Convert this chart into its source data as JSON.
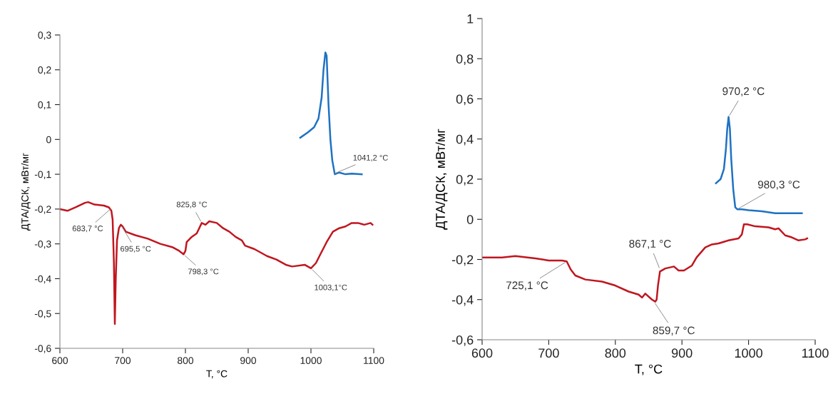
{
  "chart_data": [
    {
      "type": "line",
      "xlabel": "T, °C",
      "ylabel": "ДТА/ДСК, мВт/мг",
      "xlim": [
        600,
        1100
      ],
      "ylim": [
        -0.6,
        0.3
      ],
      "xticks": [
        600,
        700,
        800,
        900,
        1000,
        1100
      ],
      "yticks": [
        {
          "value": -0.6,
          "label": "-0,6"
        },
        {
          "value": -0.5,
          "label": "-0,5"
        },
        {
          "value": -0.4,
          "label": "-0,4"
        },
        {
          "value": -0.3,
          "label": "-0,3"
        },
        {
          "value": -0.2,
          "label": "-0,2"
        },
        {
          "value": -0.1,
          "label": "-0,1"
        },
        0,
        {
          "value": 0.1,
          "label": "0,1"
        },
        {
          "value": 0.2,
          "label": "0,2"
        },
        {
          "value": 0.3,
          "label": "0,3"
        }
      ],
      "grid": false,
      "legend": false,
      "series": [
        {
          "color": "#c0161f",
          "x": [
            600,
            612,
            625,
            640,
            645,
            655,
            670,
            678,
            682,
            684,
            686,
            687.5,
            689,
            691,
            694,
            697,
            700,
            705,
            720,
            740,
            760,
            780,
            790,
            797,
            800,
            802,
            810,
            818,
            822,
            826,
            832,
            838,
            850,
            860,
            870,
            880,
            890,
            895,
            910,
            930,
            945,
            960,
            970,
            990,
            1000,
            1008,
            1015,
            1025,
            1035,
            1045,
            1055,
            1065,
            1075,
            1085,
            1095,
            1098
          ],
          "values": [
            -0.2,
            -0.205,
            -0.195,
            -0.182,
            -0.18,
            -0.187,
            -0.19,
            -0.195,
            -0.205,
            -0.23,
            -0.35,
            -0.53,
            -0.4,
            -0.29,
            -0.255,
            -0.245,
            -0.25,
            -0.265,
            -0.275,
            -0.285,
            -0.3,
            -0.31,
            -0.32,
            -0.33,
            -0.32,
            -0.295,
            -0.28,
            -0.27,
            -0.255,
            -0.24,
            -0.245,
            -0.235,
            -0.24,
            -0.255,
            -0.265,
            -0.28,
            -0.29,
            -0.305,
            -0.315,
            -0.335,
            -0.345,
            -0.36,
            -0.365,
            -0.36,
            -0.37,
            -0.355,
            -0.33,
            -0.295,
            -0.265,
            -0.255,
            -0.25,
            -0.24,
            -0.24,
            -0.245,
            -0.24,
            -0.245
          ]
        },
        {
          "color": "#1f72c2",
          "x": [
            983,
            995,
            1005,
            1012,
            1017,
            1020,
            1023,
            1025,
            1028,
            1031,
            1034,
            1038,
            1045,
            1055,
            1065,
            1081
          ],
          "values": [
            0.005,
            0.02,
            0.035,
            0.06,
            0.12,
            0.2,
            0.25,
            0.24,
            0.1,
            0.0,
            -0.06,
            -0.1,
            -0.095,
            -0.1,
            -0.098,
            -0.1
          ]
        }
      ],
      "annotations": [
        {
          "text": "683,7 °C",
          "x": 683.7,
          "y": -0.195
        },
        {
          "text": "695,5 °C",
          "x": 697,
          "y": -0.245
        },
        {
          "text": "825,8 °C",
          "x": 826,
          "y": -0.24
        },
        {
          "text": "798,3 °C",
          "x": 797,
          "y": -0.33
        },
        {
          "text": "1003,1°C",
          "x": 1000,
          "y": -0.37
        },
        {
          "text": "1041,2 °C",
          "x": 1035,
          "y": -0.1
        }
      ]
    },
    {
      "type": "line",
      "xlabel": "T, °C",
      "ylabel": "ДТА/ДСК, мВт/мг",
      "xlim": [
        600,
        1100
      ],
      "ylim": [
        -0.6,
        1
      ],
      "xticks": [
        600,
        700,
        800,
        900,
        1000,
        1100
      ],
      "yticks": [
        {
          "value": -0.6,
          "label": "-0,6"
        },
        {
          "value": -0.4,
          "label": "-0,4"
        },
        {
          "value": -0.2,
          "label": "-0,2"
        },
        0,
        {
          "value": 0.2,
          "label": "0,2"
        },
        {
          "value": 0.4,
          "label": "0,4"
        },
        {
          "value": 0.6,
          "label": "0,6"
        },
        {
          "value": 0.8,
          "label": "0,8"
        },
        1
      ],
      "grid": false,
      "legend": false,
      "series": [
        {
          "color": "#c0161f",
          "x": [
            600,
            630,
            650,
            680,
            700,
            720,
            727,
            733,
            740,
            755,
            780,
            800,
            820,
            835,
            840,
            845,
            855,
            860,
            862,
            864,
            867,
            875,
            888,
            895,
            903,
            915,
            922,
            935,
            945,
            955,
            970,
            985,
            990,
            993,
            998,
            1010,
            1030,
            1040,
            1045,
            1055,
            1065,
            1075,
            1085,
            1088
          ],
          "values": [
            -0.19,
            -0.19,
            -0.183,
            -0.195,
            -0.205,
            -0.205,
            -0.21,
            -0.25,
            -0.28,
            -0.3,
            -0.31,
            -0.33,
            -0.36,
            -0.375,
            -0.39,
            -0.37,
            -0.4,
            -0.41,
            -0.4,
            -0.33,
            -0.26,
            -0.245,
            -0.235,
            -0.255,
            -0.255,
            -0.23,
            -0.19,
            -0.14,
            -0.125,
            -0.12,
            -0.105,
            -0.095,
            -0.075,
            -0.025,
            -0.025,
            -0.035,
            -0.04,
            -0.05,
            -0.045,
            -0.08,
            -0.09,
            -0.105,
            -0.1,
            -0.095
          ]
        },
        {
          "color": "#1f72c2",
          "x": [
            951,
            958,
            963,
            966,
            968,
            970,
            972,
            974,
            977,
            980,
            983,
            990,
            1000,
            1020,
            1040,
            1060,
            1080
          ],
          "values": [
            0.18,
            0.2,
            0.25,
            0.35,
            0.45,
            0.51,
            0.45,
            0.3,
            0.15,
            0.06,
            0.05,
            0.05,
            0.045,
            0.04,
            0.03,
            0.03,
            0.03
          ]
        }
      ],
      "annotations": [
        {
          "text": "970,2 °C",
          "x": 970,
          "y": 0.51
        },
        {
          "text": "980,3 °C",
          "x": 983,
          "y": 0.05
        },
        {
          "text": "725,1 °C",
          "x": 727,
          "y": -0.21
        },
        {
          "text": "867,1 °C",
          "x": 867,
          "y": -0.25
        },
        {
          "text": "859,7 °C",
          "x": 858,
          "y": -0.41
        }
      ]
    }
  ]
}
